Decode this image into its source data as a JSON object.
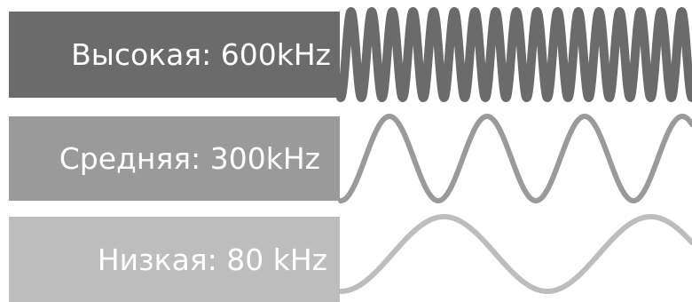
{
  "bands": [
    {
      "label": "Высокая: 600kHz",
      "color": "#6b6b6b",
      "cycles_in_view": 17
    },
    {
      "label": "Средняя: 300kHz",
      "color": "#9a9a9a",
      "cycles_in_view": 3.6
    },
    {
      "label": "Низкая: 80 kHz",
      "color": "#bdbdbd",
      "cycles_in_view": 1.7
    }
  ]
}
